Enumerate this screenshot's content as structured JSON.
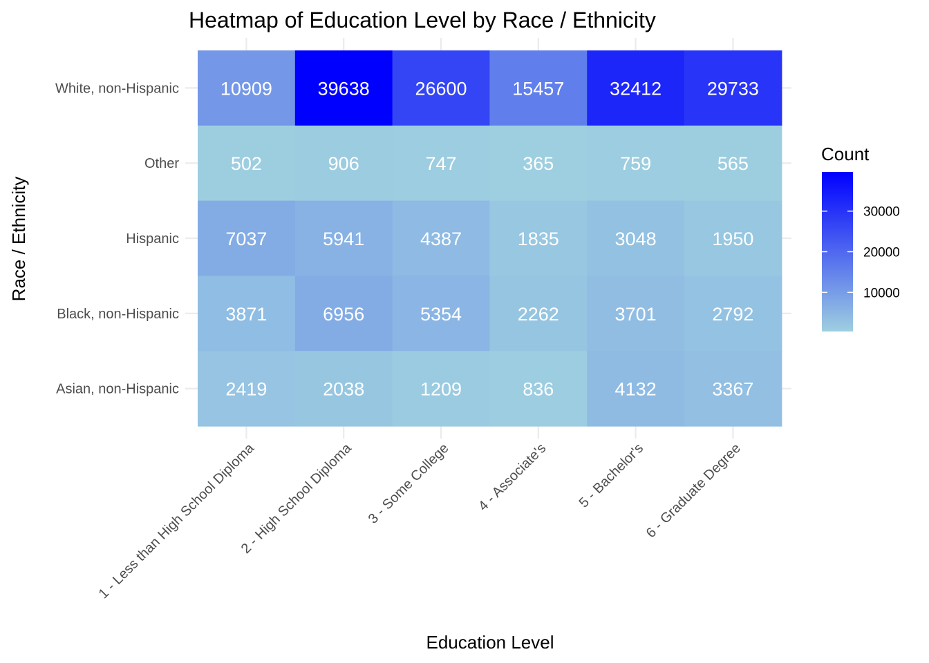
{
  "chart_data": {
    "type": "heatmap",
    "title": "Heatmap of Education Level by Race / Ethnicity",
    "xlabel": "Education Level",
    "ylabel": "Race / Ethnicity",
    "x_categories": [
      "1 - Less than High School Diploma",
      "2 - High School Diploma",
      "3 - Some College",
      "4 - Associate's",
      "5 - Bachelor's",
      "6 - Graduate Degree"
    ],
    "y_categories": [
      "White, non-Hispanic",
      "Other",
      "Hispanic",
      "Black, non-Hispanic",
      "Asian, non-Hispanic"
    ],
    "values": [
      [
        10909,
        39638,
        26600,
        15457,
        32412,
        29733
      ],
      [
        502,
        906,
        747,
        365,
        759,
        565
      ],
      [
        7037,
        5941,
        4387,
        1835,
        3048,
        1950
      ],
      [
        3871,
        6956,
        5354,
        2262,
        3701,
        2792
      ],
      [
        2419,
        2038,
        1209,
        836,
        4132,
        3367
      ]
    ],
    "legend": {
      "title": "Count",
      "ticks": [
        10000,
        20000,
        30000
      ],
      "low_color": "#9ecfe0",
      "high_color": "#0000ff",
      "min": 365,
      "max": 39638,
      "placement": "right"
    },
    "grid": true
  }
}
